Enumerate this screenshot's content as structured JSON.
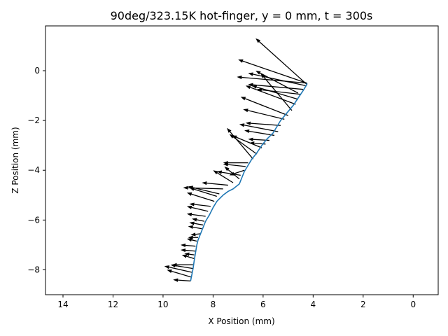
{
  "chart_data": {
    "type": "quiver",
    "title": "90deg/323.15K hot-finger, y = 0 mm, t = 300s",
    "xlabel": "X Position (mm)",
    "ylabel": "Z Position (mm)",
    "xlim": [
      14.7,
      -1.0
    ],
    "ylim": [
      -9.0,
      1.8
    ],
    "x_ticks": [
      14,
      12,
      10,
      8,
      6,
      4,
      2,
      0
    ],
    "x_tick_labels": [
      "14",
      "12",
      "10",
      "8",
      "6",
      "4",
      "2",
      "0"
    ],
    "y_ticks": [
      0,
      -2,
      -4,
      -6,
      -8
    ],
    "y_tick_labels": [
      "0",
      "−2",
      "−4",
      "−6",
      "−8"
    ],
    "line_color": "#1f77b4",
    "arrow_color": "#000000",
    "interface_line": {
      "x": [
        8.9,
        8.85,
        8.8,
        8.75,
        8.7,
        8.65,
        8.6,
        8.5,
        8.4,
        8.3,
        8.15,
        8.0,
        7.85,
        7.75,
        7.6,
        7.4,
        7.2,
        6.95,
        6.85,
        6.75,
        6.6,
        6.45,
        6.25,
        6.05,
        5.85,
        5.6,
        5.45,
        5.3,
        5.05,
        4.8,
        4.6,
        4.4,
        4.25,
        4.25
      ],
      "z": [
        -8.45,
        -8.2,
        -7.95,
        -7.6,
        -7.3,
        -7.0,
        -6.8,
        -6.55,
        -6.3,
        -6.05,
        -5.8,
        -5.5,
        -5.25,
        -5.15,
        -5.0,
        -4.85,
        -4.75,
        -4.55,
        -4.3,
        -4.05,
        -3.8,
        -3.55,
        -3.3,
        -3.0,
        -2.75,
        -2.5,
        -2.25,
        -2.0,
        -1.7,
        -1.4,
        -1.1,
        -0.8,
        -0.55,
        -0.5
      ]
    },
    "vectors": [
      {
        "x": 8.9,
        "z": -8.45,
        "dx": 0.7,
        "dz": 0.05
      },
      {
        "x": 8.85,
        "z": -8.3,
        "dx": 1.0,
        "dz": 0.3
      },
      {
        "x": 8.85,
        "z": -8.1,
        "dx": 1.1,
        "dz": 0.25
      },
      {
        "x": 8.8,
        "z": -7.95,
        "dx": 0.9,
        "dz": 0.15
      },
      {
        "x": 8.8,
        "z": -7.8,
        "dx": 0.85,
        "dz": 0.0
      },
      {
        "x": 8.75,
        "z": -7.55,
        "dx": 0.5,
        "dz": 0.15
      },
      {
        "x": 8.75,
        "z": -7.4,
        "dx": 0.4,
        "dz": 0.05
      },
      {
        "x": 8.7,
        "z": -7.25,
        "dx": 0.6,
        "dz": 0.05
      },
      {
        "x": 8.7,
        "z": -7.05,
        "dx": 0.6,
        "dz": 0.05
      },
      {
        "x": 8.65,
        "z": -6.85,
        "dx": 0.4,
        "dz": 0.1
      },
      {
        "x": 8.6,
        "z": -6.7,
        "dx": 0.4,
        "dz": 0.0
      },
      {
        "x": 8.5,
        "z": -6.55,
        "dx": 0.4,
        "dz": -0.05
      },
      {
        "x": 8.45,
        "z": -6.35,
        "dx": 0.55,
        "dz": 0.1
      },
      {
        "x": 8.4,
        "z": -6.2,
        "dx": 0.55,
        "dz": 0.1
      },
      {
        "x": 8.35,
        "z": -6.05,
        "dx": 0.5,
        "dz": 0.1
      },
      {
        "x": 8.3,
        "z": -5.85,
        "dx": 0.75,
        "dz": 0.1
      },
      {
        "x": 8.2,
        "z": -5.65,
        "dx": 0.85,
        "dz": 0.2
      },
      {
        "x": 8.1,
        "z": -5.45,
        "dx": 0.85,
        "dz": 0.1
      },
      {
        "x": 7.95,
        "z": -5.25,
        "dx": 1.1,
        "dz": 0.35
      },
      {
        "x": 7.85,
        "z": -5.05,
        "dx": 1.1,
        "dz": 0.35
      },
      {
        "x": 7.75,
        "z": -4.95,
        "dx": 1.25,
        "dz": 0.3
      },
      {
        "x": 7.6,
        "z": -4.75,
        "dx": 1.6,
        "dz": 0.05
      },
      {
        "x": 7.4,
        "z": -4.6,
        "dx": 1.05,
        "dz": 0.1
      },
      {
        "x": 7.2,
        "z": -4.5,
        "dx": 0.8,
        "dz": 0.5
      },
      {
        "x": 6.95,
        "z": -4.35,
        "dx": 0.6,
        "dz": 0.5
      },
      {
        "x": 6.9,
        "z": -4.2,
        "dx": 0.95,
        "dz": 0.15
      },
      {
        "x": 6.75,
        "z": -4.0,
        "dx": 0.6,
        "dz": -0.2
      },
      {
        "x": 6.7,
        "z": -3.85,
        "dx": 0.9,
        "dz": 0.1
      },
      {
        "x": 6.6,
        "z": -3.7,
        "dx": 1.0,
        "dz": 0.0
      },
      {
        "x": 6.4,
        "z": -3.55,
        "dx": 1.05,
        "dz": 1.25
      },
      {
        "x": 6.25,
        "z": -3.35,
        "dx": 1.1,
        "dz": 0.8
      },
      {
        "x": 6.05,
        "z": -3.1,
        "dx": 1.2,
        "dz": 0.5
      },
      {
        "x": 5.9,
        "z": -2.95,
        "dx": 0.65,
        "dz": 0.05
      },
      {
        "x": 5.75,
        "z": -2.8,
        "dx": 0.85,
        "dz": 0.05
      },
      {
        "x": 5.55,
        "z": -2.6,
        "dx": 1.2,
        "dz": 0.2
      },
      {
        "x": 5.4,
        "z": -2.45,
        "dx": 1.55,
        "dz": 0.3
      },
      {
        "x": 5.3,
        "z": -2.2,
        "dx": 1.4,
        "dz": 0.1
      },
      {
        "x": 5.15,
        "z": -1.95,
        "dx": 1.65,
        "dz": 0.4
      },
      {
        "x": 5.0,
        "z": -1.8,
        "dx": 1.9,
        "dz": 0.75
      },
      {
        "x": 4.85,
        "z": -1.6,
        "dx": 1.25,
        "dz": 1.5
      },
      {
        "x": 4.7,
        "z": -1.35,
        "dx": 2.0,
        "dz": 0.75
      },
      {
        "x": 4.6,
        "z": -1.15,
        "dx": 1.85,
        "dz": 0.55
      },
      {
        "x": 4.5,
        "z": -0.95,
        "dx": 1.75,
        "dz": 0.2
      },
      {
        "x": 4.4,
        "z": -0.75,
        "dx": 2.2,
        "dz": 0.2
      },
      {
        "x": 4.3,
        "z": -0.6,
        "dx": 2.3,
        "dz": 0.5
      },
      {
        "x": 4.25,
        "z": -0.5,
        "dx": 2.8,
        "dz": 0.25
      },
      {
        "x": 4.6,
        "z": -0.9,
        "dx": 1.7,
        "dz": 0.9
      },
      {
        "x": 4.25,
        "z": -0.5,
        "dx": 2.75,
        "dz": 0.95
      },
      {
        "x": 4.25,
        "z": -0.55,
        "dx": 2.05,
        "dz": 1.85
      }
    ]
  }
}
